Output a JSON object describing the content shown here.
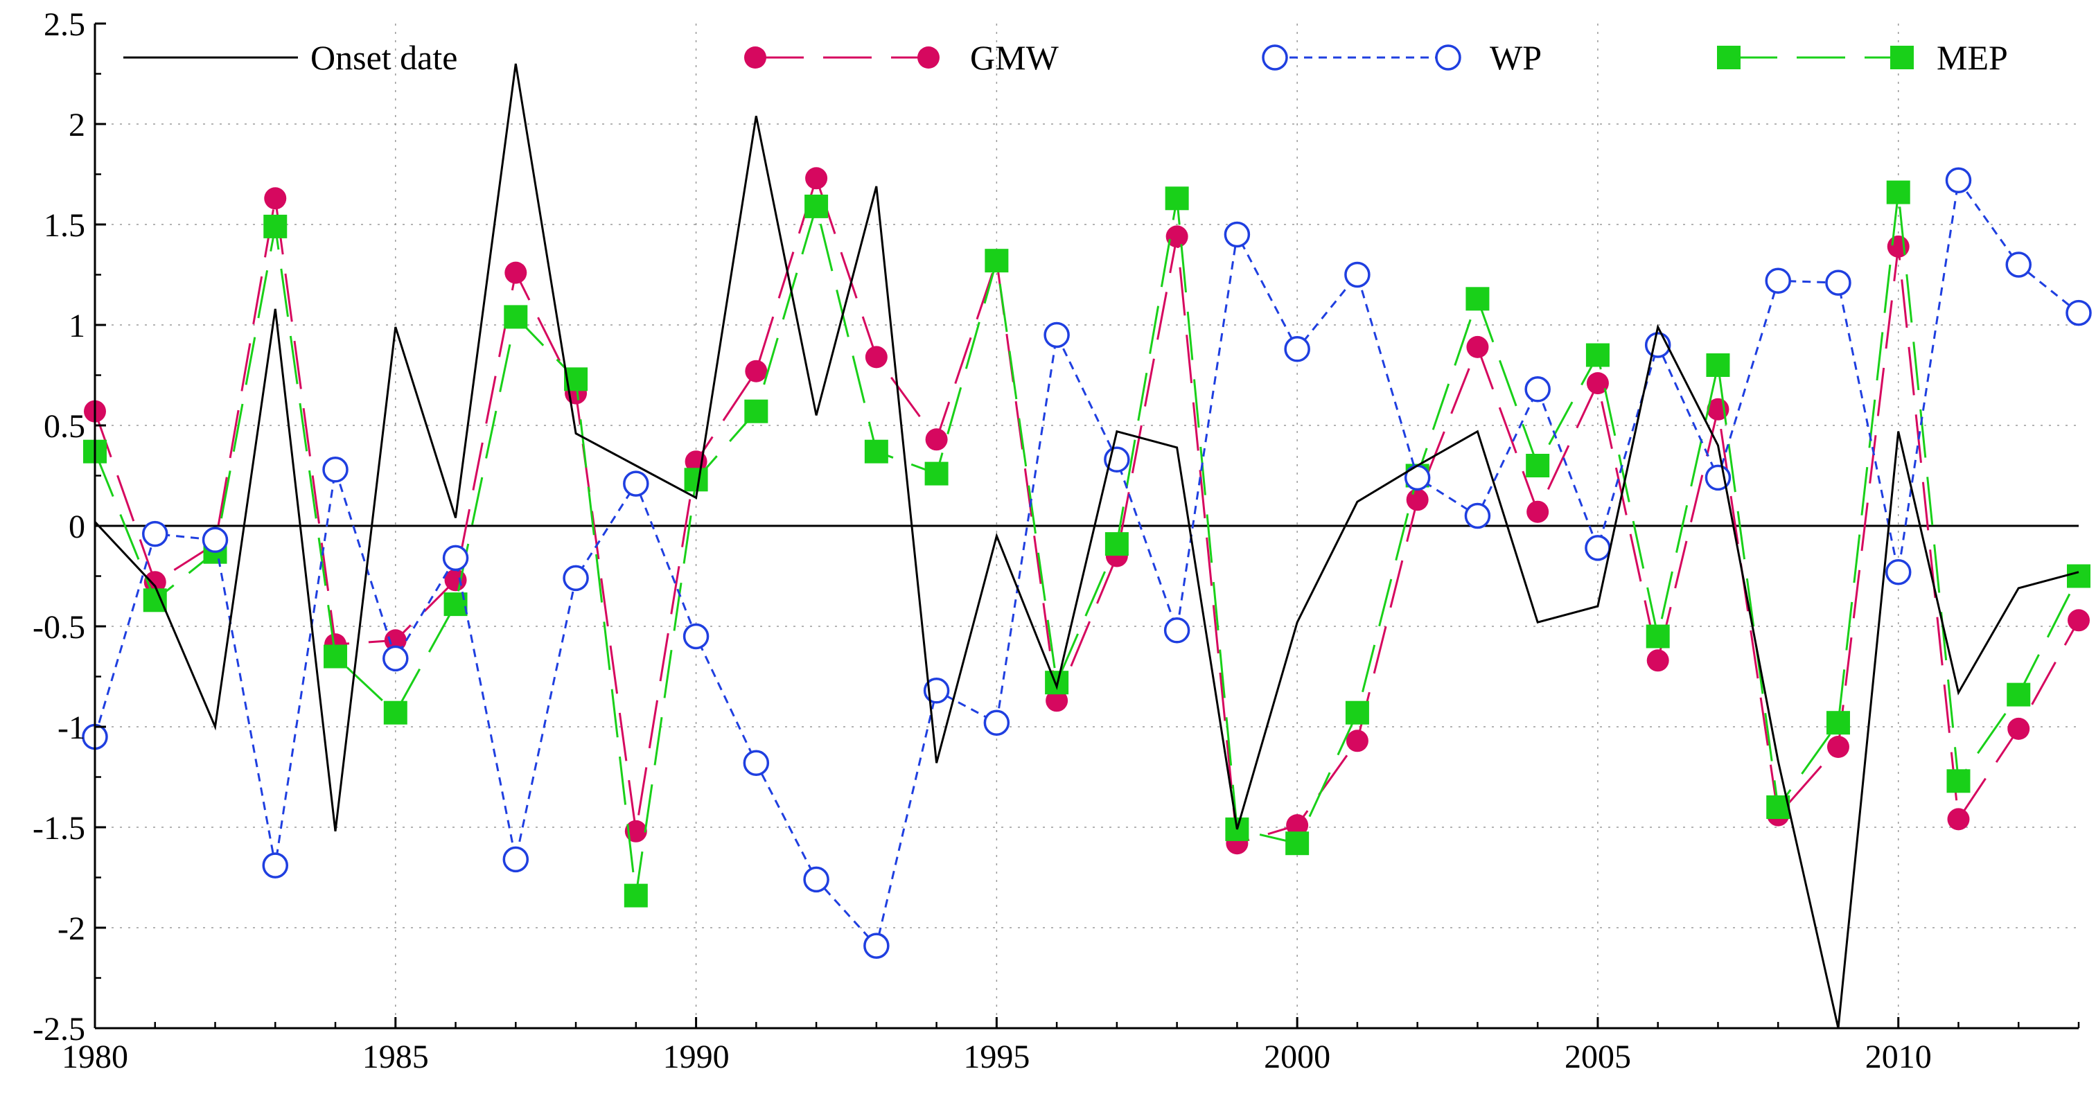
{
  "chart_data": {
    "type": "line",
    "title": "",
    "xlabel": "",
    "ylabel": "",
    "xlim": [
      1980,
      2013
    ],
    "ylim": [
      -2.5,
      2.5
    ],
    "grid": true,
    "legend_position": "top",
    "x_ticks": [
      1980,
      1985,
      1990,
      1995,
      2000,
      2005,
      2010
    ],
    "x_tick_labels": [
      "1980",
      "1985",
      "1990",
      "1995",
      "2000",
      "2005",
      "2010"
    ],
    "y_ticks": [
      -2.5,
      -2,
      -1.5,
      -1,
      -0.5,
      0,
      0.5,
      1,
      1.5,
      2,
      2.5
    ],
    "y_tick_labels": [
      "-2.5",
      "-2",
      "-1.5",
      "-1",
      "-0.5",
      "0",
      "0.5",
      "1",
      "1.5",
      "2",
      "2.5"
    ],
    "x": [
      1980,
      1981,
      1982,
      1983,
      1984,
      1985,
      1986,
      1987,
      1988,
      1989,
      1990,
      1991,
      1992,
      1993,
      1994,
      1995,
      1996,
      1997,
      1998,
      1999,
      2000,
      2001,
      2002,
      2003,
      2004,
      2005,
      2006,
      2007,
      2008,
      2009,
      2010,
      2011,
      2012,
      2013
    ],
    "series": [
      {
        "name": "Onset date",
        "key": "onset",
        "color": "#000000",
        "dash": "solid",
        "marker": "none",
        "values": [
          0.02,
          -0.3,
          -1.0,
          1.08,
          -1.52,
          0.99,
          0.04,
          2.3,
          0.46,
          0.3,
          0.14,
          2.04,
          0.55,
          1.69,
          -1.18,
          -0.05,
          -0.8,
          0.47,
          0.39,
          -1.51,
          -0.48,
          0.12,
          0.3,
          0.47,
          -0.48,
          -0.4,
          0.99,
          0.4,
          -1.17,
          -2.5,
          0.47,
          -0.83,
          -0.31,
          -0.23
        ]
      },
      {
        "name": "GMW",
        "key": "gmw",
        "color": "#d6085f",
        "dash": "long",
        "marker": "filled-circle",
        "values": [
          0.57,
          -0.28,
          -0.09,
          1.63,
          -0.59,
          -0.57,
          -0.27,
          1.26,
          0.66,
          -1.52,
          0.32,
          0.77,
          1.73,
          0.84,
          0.43,
          1.32,
          -0.87,
          -0.15,
          1.44,
          -1.58,
          -1.49,
          -1.07,
          0.13,
          0.89,
          0.07,
          0.71,
          -0.67,
          0.58,
          -1.44,
          -1.1,
          1.39,
          -1.46,
          -1.01,
          -0.47
        ]
      },
      {
        "name": "WP",
        "key": "wp",
        "color": "#1f3fe0",
        "dash": "short",
        "marker": "open-circle",
        "values": [
          -1.05,
          -0.04,
          -0.07,
          -1.69,
          0.28,
          -0.66,
          -0.16,
          -1.66,
          -0.26,
          0.21,
          -0.55,
          -1.18,
          -1.76,
          -2.09,
          -0.82,
          -0.98,
          0.95,
          0.33,
          -0.52,
          1.45,
          0.88,
          1.25,
          0.24,
          0.05,
          0.68,
          -0.11,
          0.9,
          0.24,
          1.22,
          1.21,
          -0.23,
          1.72,
          1.3,
          1.06
        ]
      },
      {
        "name": "MEP",
        "key": "mep",
        "color": "#19d019",
        "dash": "long",
        "marker": "filled-square",
        "values": [
          0.37,
          -0.37,
          -0.13,
          1.49,
          -0.65,
          -0.93,
          -0.39,
          1.04,
          0.73,
          -1.84,
          0.23,
          0.57,
          1.59,
          0.37,
          0.26,
          1.32,
          -0.78,
          -0.09,
          1.63,
          -1.51,
          -1.58,
          -0.93,
          0.25,
          1.13,
          0.3,
          0.85,
          -0.55,
          0.8,
          -1.4,
          -0.98,
          1.66,
          -1.27,
          -0.84,
          -0.25
        ]
      }
    ]
  }
}
